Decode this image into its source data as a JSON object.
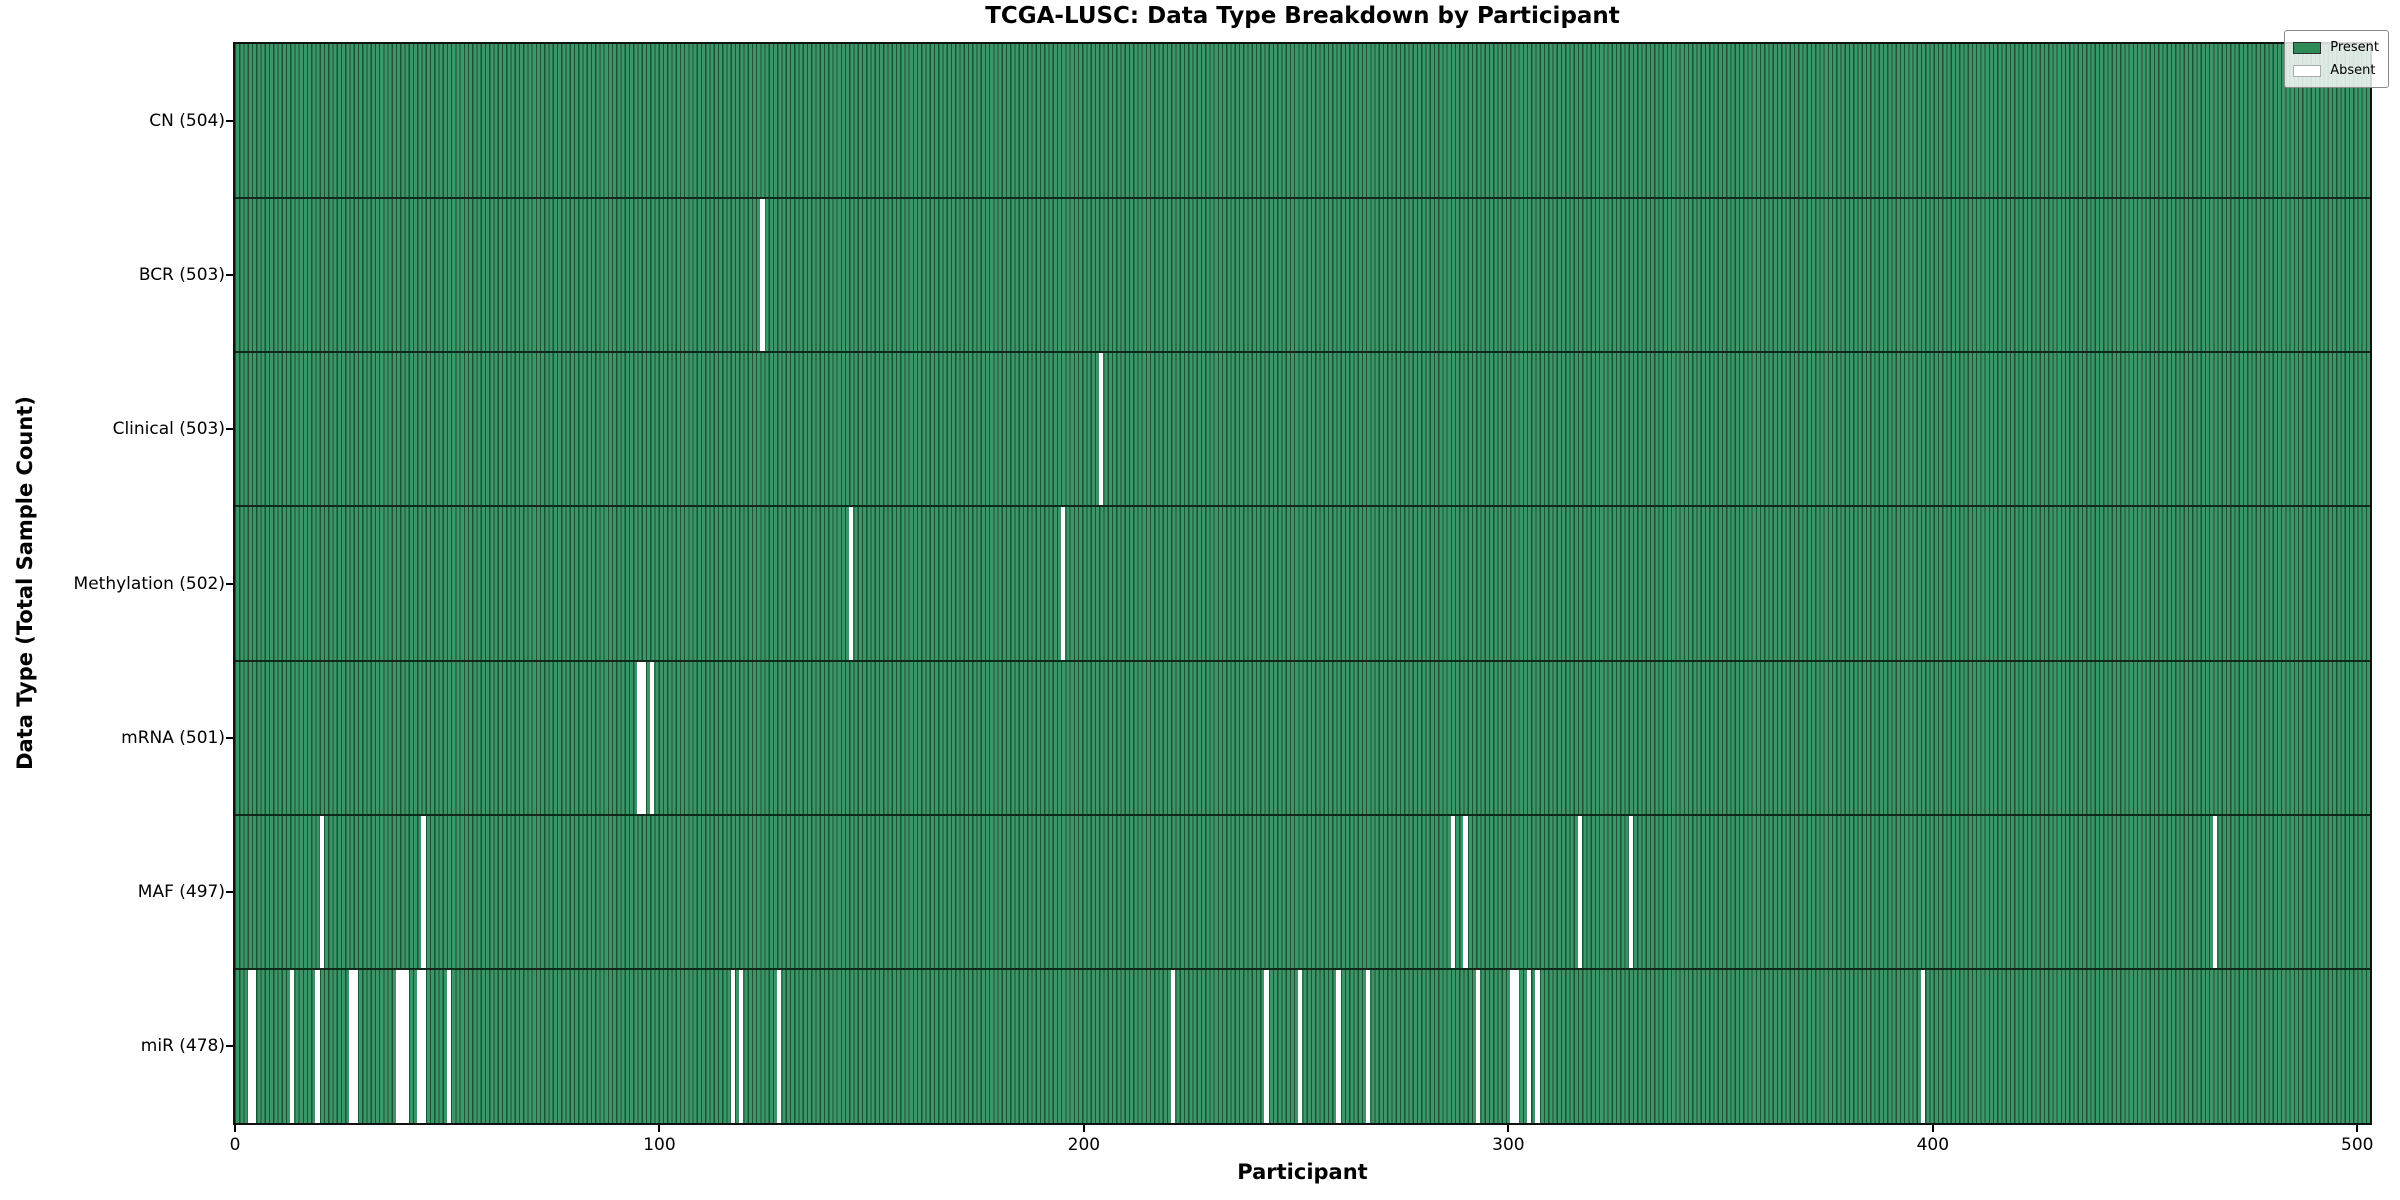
{
  "chart_data": {
    "type": "heatmap",
    "title": "TCGA-LUSC: Data Type Breakdown by Participant",
    "xlabel": "Participant",
    "ylabel": "Data Type (Total Sample Count)",
    "total_participants": 504,
    "xlim": [
      0,
      503
    ],
    "x_ticks": [
      0,
      100,
      200,
      300,
      400,
      500
    ],
    "grid": false,
    "legend": {
      "position": "upper right",
      "entries": [
        {
          "label": "Present",
          "color": "#2e8b57"
        },
        {
          "label": "Absent",
          "color": "#ffffff"
        }
      ]
    },
    "colors": {
      "present_fill": "#3c9768",
      "bar_edge": "#1d5237",
      "absent_fill": "#ffffff",
      "row_separator": "#10291a",
      "spine": "#111111"
    },
    "rows": [
      {
        "data_type": "CN",
        "label": "CN (504)",
        "present_count": 504,
        "absent_participants": []
      },
      {
        "data_type": "BCR",
        "label": "BCR (503)",
        "present_count": 503,
        "absent_participants": [
          124
        ]
      },
      {
        "data_type": "Clinical",
        "label": "Clinical (503)",
        "present_count": 503,
        "absent_participants": [
          204
        ]
      },
      {
        "data_type": "Methylation",
        "label": "Methylation (502)",
        "present_count": 502,
        "absent_participants": [
          145,
          195
        ]
      },
      {
        "data_type": "mRNA",
        "label": "mRNA (501)",
        "present_count": 501,
        "absent_participants": [
          95,
          96,
          98
        ]
      },
      {
        "data_type": "MAF",
        "label": "MAF (497)",
        "present_count": 497,
        "absent_participants": [
          20,
          44,
          287,
          290,
          317,
          329,
          467
        ]
      },
      {
        "data_type": "miR",
        "label": "miR (478)",
        "present_count": 478,
        "absent_participants": [
          3,
          4,
          13,
          19,
          27,
          28,
          38,
          39,
          40,
          43,
          44,
          50,
          117,
          119,
          128,
          221,
          243,
          251,
          260,
          267,
          293,
          301,
          302,
          305,
          307,
          398
        ]
      }
    ]
  }
}
